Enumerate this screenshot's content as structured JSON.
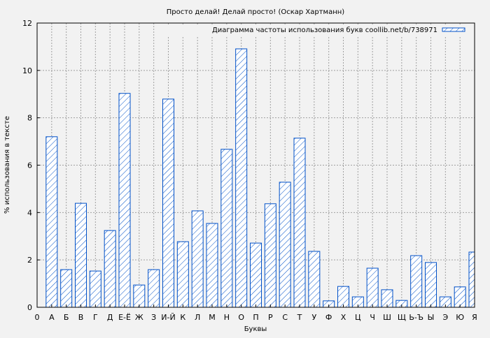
{
  "chart_data": {
    "type": "bar",
    "title": "Просто делай! Делай просто! (Оскар Хартманн)",
    "xlabel": "Буквы",
    "ylabel": "% использования в тексте",
    "x_zero_label": "0",
    "categories": [
      "А",
      "Б",
      "В",
      "Г",
      "Д",
      "Е-Ё",
      "Ж",
      "З",
      "И-Й",
      "К",
      "Л",
      "М",
      "Н",
      "О",
      "П",
      "Р",
      "С",
      "Т",
      "У",
      "Ф",
      "Х",
      "Ц",
      "Ч",
      "Ш",
      "Щ",
      "Ь-Ъ",
      "Ы",
      "Э",
      "Ю",
      "Я"
    ],
    "series": [
      {
        "name": "Диаграмма частоты использования букв coollib.net/b/738971",
        "values": [
          7.2,
          1.59,
          4.39,
          1.53,
          3.24,
          9.03,
          0.94,
          1.59,
          8.79,
          2.77,
          4.07,
          3.54,
          6.67,
          10.91,
          2.71,
          4.37,
          5.28,
          7.14,
          2.36,
          0.27,
          0.88,
          0.44,
          1.65,
          0.74,
          0.29,
          2.18,
          1.89,
          0.44,
          0.86,
          2.33
        ]
      }
    ],
    "xlim": [
      0,
      30
    ],
    "ylim": [
      0,
      12
    ],
    "yticks": [
      0,
      2,
      4,
      6,
      8,
      10,
      12
    ],
    "grid": true,
    "legend": "top-right",
    "colors": {
      "bar_stroke": "#0050c8",
      "bar_fill": "#ffffff",
      "background": "#f2f2f2",
      "grid": "#a0a0a0"
    }
  }
}
